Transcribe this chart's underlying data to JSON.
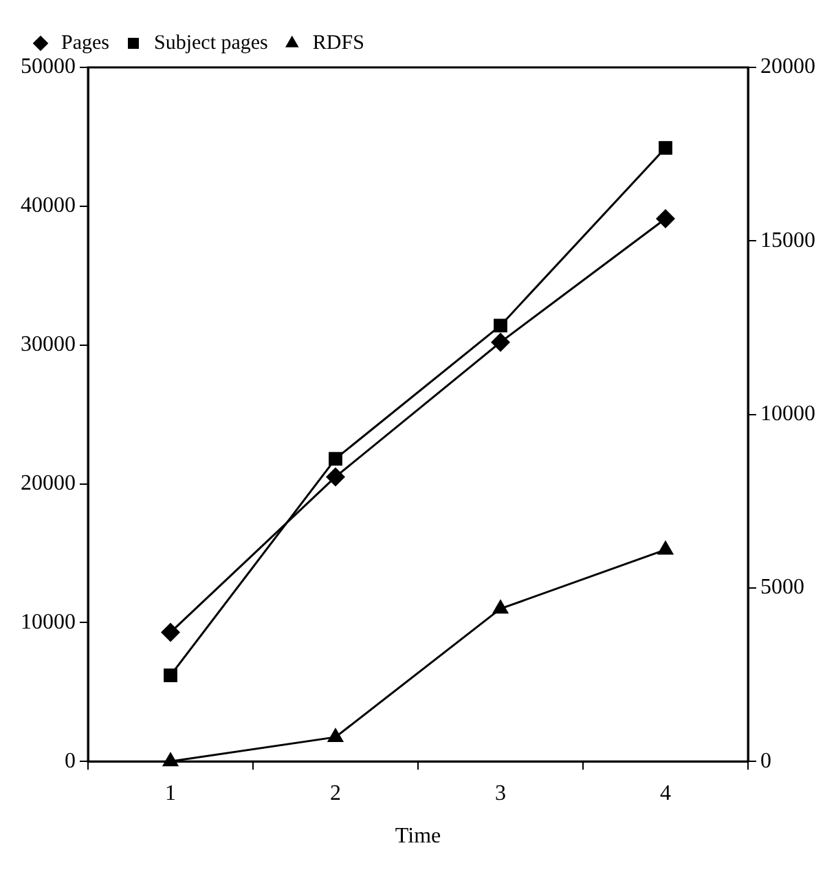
{
  "chart_data": {
    "type": "line",
    "xlabel": "Time",
    "categories": [
      "1",
      "2",
      "3",
      "4"
    ],
    "series": [
      {
        "name": "Pages",
        "color": "#000000",
        "marker": "diamond",
        "values": [
          9300,
          20500,
          30200,
          39100
        ]
      },
      {
        "name": "Subject pages",
        "color": "#000000",
        "marker": "square",
        "values": [
          6200,
          21800,
          31400,
          44200
        ]
      },
      {
        "name": "RDFS",
        "color": "#000000",
        "marker": "triangle",
        "axis": "y2",
        "values": [
          0,
          700,
          4400,
          6100
        ]
      }
    ],
    "ylim": [
      0,
      50000
    ],
    "yticks": [
      0,
      10000,
      20000,
      30000,
      40000,
      50000
    ],
    "y2lim": [
      0,
      20000
    ],
    "y2ticks": [
      0,
      5000,
      10000,
      15000,
      20000
    ],
    "grid": false,
    "legend": "top left",
    "line_style": "solid"
  }
}
